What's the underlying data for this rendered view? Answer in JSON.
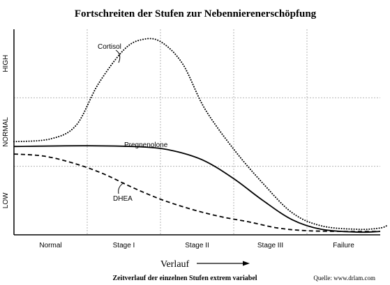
{
  "chart_data": {
    "type": "line",
    "title": "Fortschreiten der Stufen zur Nebennierenerschöpfung",
    "xlabel": "Verlauf",
    "categories": [
      "Normal",
      "Stage I",
      "Stage II",
      "Stage III",
      "Failure"
    ],
    "y_levels": [
      "LOW",
      "NORMAL",
      "HIGH"
    ],
    "x_range": [
      0,
      5
    ],
    "y_range": [
      0,
      3
    ],
    "series": [
      {
        "name": "Cortisol",
        "style": "dotted",
        "points": [
          [
            0,
            1.36
          ],
          [
            0.5,
            1.4
          ],
          [
            0.85,
            1.6
          ],
          [
            1.15,
            2.2
          ],
          [
            1.5,
            2.7
          ],
          [
            1.75,
            2.85
          ],
          [
            2.0,
            2.82
          ],
          [
            2.3,
            2.5
          ],
          [
            2.6,
            1.85
          ],
          [
            3.0,
            1.25
          ],
          [
            3.4,
            0.75
          ],
          [
            3.8,
            0.32
          ],
          [
            4.2,
            0.13
          ],
          [
            4.7,
            0.08
          ],
          [
            5.0,
            0.1
          ],
          [
            5.1,
            0.14
          ]
        ]
      },
      {
        "name": "Pregnenolone",
        "style": "solid",
        "points": [
          [
            0,
            1.29
          ],
          [
            1.0,
            1.3
          ],
          [
            1.8,
            1.28
          ],
          [
            2.2,
            1.22
          ],
          [
            2.6,
            1.08
          ],
          [
            3.0,
            0.82
          ],
          [
            3.4,
            0.5
          ],
          [
            3.8,
            0.22
          ],
          [
            4.2,
            0.08
          ],
          [
            4.7,
            0.04
          ],
          [
            5.0,
            0.05
          ]
        ]
      },
      {
        "name": "DHEA",
        "style": "dashed",
        "points": [
          [
            0,
            1.18
          ],
          [
            0.4,
            1.15
          ],
          [
            0.8,
            1.05
          ],
          [
            1.2,
            0.9
          ],
          [
            1.6,
            0.7
          ],
          [
            2.0,
            0.52
          ],
          [
            2.4,
            0.38
          ],
          [
            2.8,
            0.27
          ],
          [
            3.2,
            0.19
          ],
          [
            3.6,
            0.1
          ],
          [
            4.0,
            0.06
          ],
          [
            4.5,
            0.05
          ],
          [
            5.0,
            0.05
          ]
        ]
      }
    ],
    "grid": true,
    "grid_style": "dotted",
    "footnote": "Zeitverlauf der einzelnen Stufen extrem variabel",
    "source": "Quelle: www.drlam.com"
  }
}
